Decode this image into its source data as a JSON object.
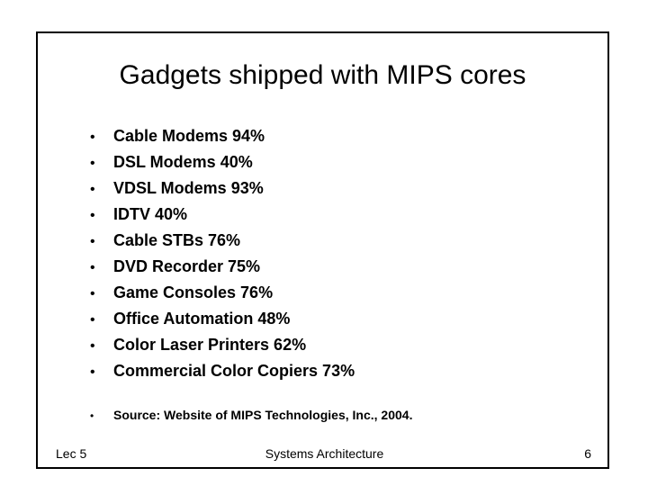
{
  "slide": {
    "title": "Gadgets shipped with MIPS cores",
    "bullet_glyph": "•",
    "items": [
      "Cable Modems 94%",
      "DSL Modems 40%",
      "VDSL Modems 93%",
      "IDTV 40%",
      "Cable STBs 76%",
      "DVD Recorder 75%",
      "Game Consoles 76%",
      "Office Automation 48%",
      "Color Laser Printers 62%",
      "Commercial Color Copiers 73%"
    ],
    "source": "Source: Website of MIPS Technologies, Inc., 2004."
  },
  "footer": {
    "left": "Lec 5",
    "center": "Systems Architecture",
    "right": "6"
  }
}
